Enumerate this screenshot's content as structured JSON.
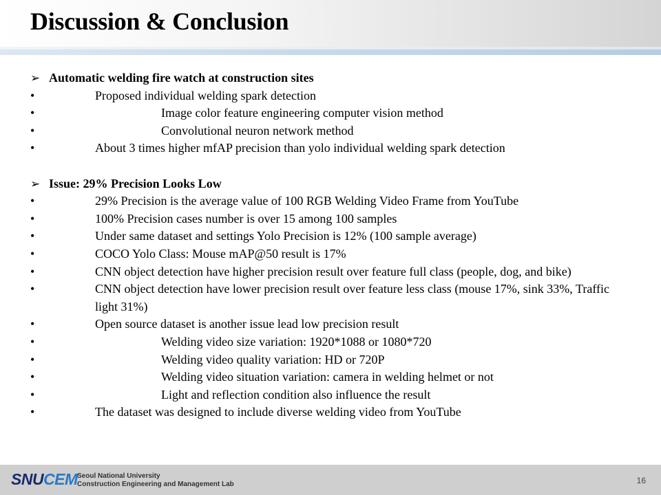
{
  "slide": {
    "title": "Discussion & Conclusion",
    "page_number": "16"
  },
  "content": {
    "section1": {
      "marker": "➢",
      "heading": "Automatic welding fire watch at construction sites",
      "items": [
        "Proposed individual welding spark detection",
        "Image color feature engineering computer vision method",
        "Convolutional neuron network method",
        "About 3 times higher mfAP precision than yolo individual welding spark detection"
      ]
    },
    "section2": {
      "marker": "➢",
      "heading": "Issue: 29% Precision Looks Low",
      "items": [
        "29% Precision is the average value of 100 RGB Welding Video Frame from YouTube",
        "100% Precision cases number is over 15 among 100 samples",
        "Under same dataset and settings Yolo Precision is 12% (100 sample average)",
        "COCO Yolo Class: Mouse mAP@50 result is 17%",
        "CNN object detection have higher precision result over feature full class (people, dog, and bike)",
        "CNN object detection have lower precision result over feature less class (mouse 17%, sink 33%, Traffic light 31%)",
        "Open source dataset is another issue lead low precision result",
        "Welding video size variation: 1920*1088 or 1080*720",
        "Welding video quality variation: HD or 720P",
        "Welding video situation variation: camera in welding helmet or not",
        "Light and reflection condition also influence the result",
        "The dataset was designed to include diverse welding video from YouTube"
      ]
    },
    "bullet": "•"
  },
  "footer": {
    "logo_snu": "SNU",
    "logo_cem": "CEM",
    "logo_line1": "Seoul National University",
    "logo_line2": "Construction Engineering and Management Lab"
  },
  "colors": {
    "logo_dark": "#1a2b6b",
    "logo_blue": "#2b78c5",
    "footer_bg": "#cfcfcf",
    "title_bar": "#c9d9ea"
  }
}
